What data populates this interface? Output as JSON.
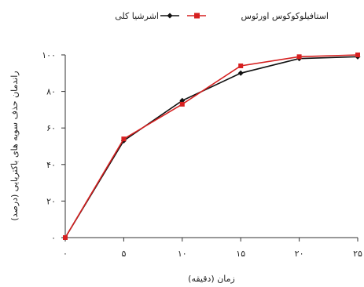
{
  "chart_data": {
    "type": "line",
    "xlabel": "زمان (دقیقه)",
    "ylabel": "راندمان حذف سویه های باکتریایی (درصد)",
    "x": [
      0,
      5,
      10,
      15,
      20,
      25
    ],
    "x_tick_labels": [
      "۰",
      "۵",
      "۱۰",
      "۱۵",
      "۲۰",
      "۲۵"
    ],
    "y_tick_values": [
      0,
      20,
      40,
      60,
      80,
      100
    ],
    "y_tick_labels": [
      "۰",
      "۲۰",
      "۴۰",
      "۶۰",
      "۸۰",
      "۱۰۰"
    ],
    "xlim": [
      0,
      25
    ],
    "ylim": [
      0,
      100
    ],
    "grid": false,
    "legend_position": "top",
    "series": [
      {
        "name": "اشرشیا کلی",
        "color": "#111111",
        "marker": "diamond",
        "values": [
          0,
          53,
          75,
          90,
          98,
          99
        ]
      },
      {
        "name": "استافیلوکوکوس اورئوس",
        "color": "#d62020",
        "marker": "square",
        "values": [
          0,
          54,
          73,
          94,
          99,
          100
        ]
      }
    ]
  }
}
